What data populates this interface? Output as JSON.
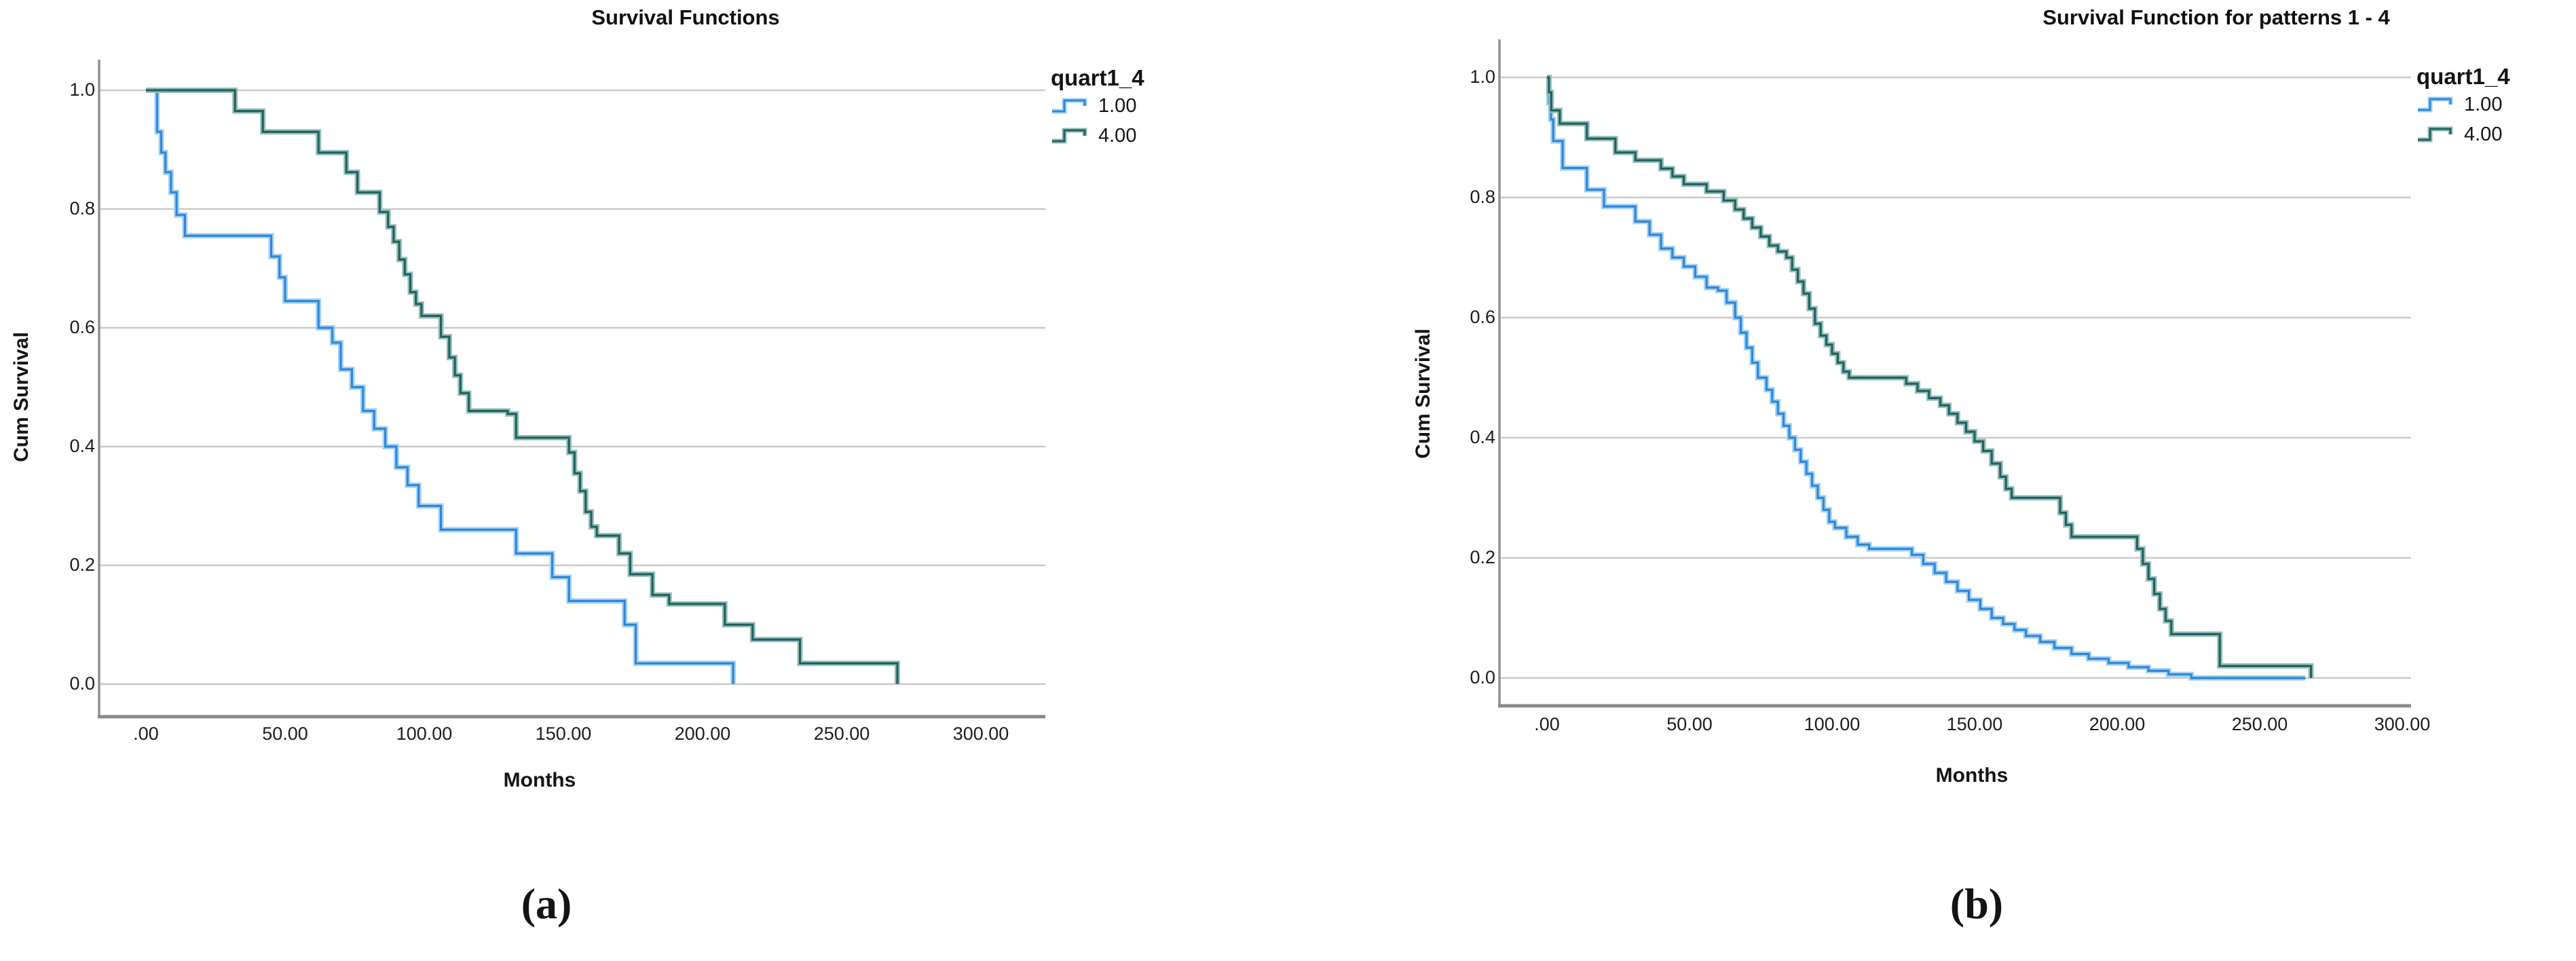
{
  "figure": {
    "caption_a": "(a)",
    "caption_b": "(b)",
    "background": "#ffffff",
    "gridline_color": "#c9c9c9",
    "y_axis_color": "#919191",
    "x_axis_color": "#8a8a8a"
  },
  "chart_data": [
    {
      "id": "a",
      "type": "step",
      "title": "Survival Functions",
      "xlabel": "Months",
      "ylabel": "Cum Survival",
      "caption": "(a)",
      "grid": "horizontal",
      "legend_position": "outside-top-right",
      "xlim": [
        -17,
        323
      ],
      "ylim": [
        0.0,
        1.05
      ],
      "x_tick_values": [
        0,
        50,
        100,
        150,
        200,
        250,
        300
      ],
      "x_tick_labels": [
        ".00",
        "50.00",
        "100.00",
        "150.00",
        "200.00",
        "250.00",
        "300.00"
      ],
      "y_tick_values": [
        0.0,
        0.2,
        0.4,
        0.6,
        0.8,
        1.0
      ],
      "y_tick_labels": [
        "0.0",
        "0.2",
        "0.4",
        "0.6",
        "0.8",
        "1.0"
      ],
      "legend": {
        "title": "quart1_4",
        "items": [
          {
            "label": "1.00",
            "color": "#2e87db",
            "halo": "#a6d2f2"
          },
          {
            "label": "4.00",
            "color": "#1f6360",
            "halo": "#97bebb"
          }
        ]
      },
      "series": [
        {
          "name": "1.00",
          "color": "#2e87db",
          "halo": "#a6d2f2",
          "points": [
            [
              0,
              1.0
            ],
            [
              4,
              0.93
            ],
            [
              5.5,
              0.895
            ],
            [
              7,
              0.862
            ],
            [
              9,
              0.828
            ],
            [
              11,
              0.79
            ],
            [
              14,
              0.755
            ],
            [
              45,
              0.72
            ],
            [
              48,
              0.685
            ],
            [
              50,
              0.645
            ],
            [
              62,
              0.6
            ],
            [
              67,
              0.575
            ],
            [
              70,
              0.53
            ],
            [
              74,
              0.5
            ],
            [
              78,
              0.46
            ],
            [
              82,
              0.43
            ],
            [
              86,
              0.4
            ],
            [
              90,
              0.365
            ],
            [
              94,
              0.335
            ],
            [
              98,
              0.3
            ],
            [
              106,
              0.26
            ],
            [
              133,
              0.22
            ],
            [
              146,
              0.18
            ],
            [
              152,
              0.14
            ],
            [
              172,
              0.1
            ],
            [
              176,
              0.035
            ],
            [
              211,
              0.0
            ]
          ]
        },
        {
          "name": "4.00",
          "color": "#1f6360",
          "halo": "#97bebb",
          "points": [
            [
              0,
              1.0
            ],
            [
              32,
              0.965
            ],
            [
              42,
              0.93
            ],
            [
              62,
              0.895
            ],
            [
              72,
              0.862
            ],
            [
              76,
              0.828
            ],
            [
              84,
              0.795
            ],
            [
              87,
              0.77
            ],
            [
              89,
              0.745
            ],
            [
              91,
              0.715
            ],
            [
              93,
              0.69
            ],
            [
              95,
              0.66
            ],
            [
              97,
              0.64
            ],
            [
              99,
              0.62
            ],
            [
              106,
              0.585
            ],
            [
              109,
              0.55
            ],
            [
              111,
              0.52
            ],
            [
              113,
              0.49
            ],
            [
              116,
              0.46
            ],
            [
              130,
              0.455
            ],
            [
              133,
              0.415
            ],
            [
              152,
              0.39
            ],
            [
              154,
              0.355
            ],
            [
              156,
              0.325
            ],
            [
              158,
              0.29
            ],
            [
              160,
              0.265
            ],
            [
              162,
              0.25
            ],
            [
              170,
              0.22
            ],
            [
              174,
              0.185
            ],
            [
              182,
              0.15
            ],
            [
              188,
              0.135
            ],
            [
              208,
              0.1
            ],
            [
              218,
              0.075
            ],
            [
              235,
              0.035
            ],
            [
              270,
              0.0
            ]
          ]
        }
      ]
    },
    {
      "id": "b",
      "type": "step",
      "title": "Survival Function for patterns 1 - 4",
      "xlabel": "Months",
      "ylabel": "Cum Survival",
      "caption": "(b)",
      "grid": "horizontal",
      "legend_position": "outside-top-right",
      "xlim": [
        -17,
        323
      ],
      "ylim": [
        0.0,
        1.05
      ],
      "x_tick_values": [
        0,
        50,
        100,
        150,
        200,
        250,
        300
      ],
      "x_tick_labels": [
        ".00",
        "50.00",
        "100.00",
        "150.00",
        "200.00",
        "250.00",
        "300.00"
      ],
      "y_tick_values": [
        0.0,
        0.2,
        0.4,
        0.6,
        0.8,
        1.0
      ],
      "y_tick_labels": [
        "0.0",
        "0.2",
        "0.4",
        "0.6",
        "0.8",
        "1.0"
      ],
      "legend": {
        "title": "quart1_4",
        "items": [
          {
            "label": "1.00",
            "color": "#2e87db",
            "halo": "#a6d2f2"
          },
          {
            "label": "4.00",
            "color": "#1f6360",
            "halo": "#97bebb"
          }
        ]
      },
      "series": [
        {
          "name": "1.00",
          "color": "#2e87db",
          "halo": "#a6d2f2",
          "points": [
            [
              0,
              1.0
            ],
            [
              0.7,
              0.957
            ],
            [
              1.4,
              0.93
            ],
            [
              2.2,
              0.894
            ],
            [
              5.5,
              0.849
            ],
            [
              14,
              0.813
            ],
            [
              20,
              0.785
            ],
            [
              31,
              0.76
            ],
            [
              36,
              0.738
            ],
            [
              40,
              0.715
            ],
            [
              44,
              0.7
            ],
            [
              48,
              0.685
            ],
            [
              52,
              0.668
            ],
            [
              56,
              0.65
            ],
            [
              60,
              0.645
            ],
            [
              63,
              0.625
            ],
            [
              66,
              0.6
            ],
            [
              68,
              0.575
            ],
            [
              70,
              0.55
            ],
            [
              72,
              0.525
            ],
            [
              74,
              0.5
            ],
            [
              77,
              0.48
            ],
            [
              79,
              0.46
            ],
            [
              81,
              0.44
            ],
            [
              83,
              0.42
            ],
            [
              85,
              0.4
            ],
            [
              87,
              0.38
            ],
            [
              89,
              0.36
            ],
            [
              91,
              0.34
            ],
            [
              93,
              0.32
            ],
            [
              95,
              0.3
            ],
            [
              97,
              0.28
            ],
            [
              99,
              0.26
            ],
            [
              101,
              0.25
            ],
            [
              105,
              0.235
            ],
            [
              109,
              0.222
            ],
            [
              113,
              0.215
            ],
            [
              128,
              0.205
            ],
            [
              132,
              0.19
            ],
            [
              136,
              0.175
            ],
            [
              140,
              0.16
            ],
            [
              144,
              0.145
            ],
            [
              148,
              0.13
            ],
            [
              152,
              0.115
            ],
            [
              156,
              0.1
            ],
            [
              160,
              0.09
            ],
            [
              164,
              0.08
            ],
            [
              168,
              0.07
            ],
            [
              173,
              0.06
            ],
            [
              178,
              0.05
            ],
            [
              184,
              0.04
            ],
            [
              190,
              0.032
            ],
            [
              197,
              0.025
            ],
            [
              204,
              0.018
            ],
            [
              211,
              0.012
            ],
            [
              218,
              0.006
            ],
            [
              226,
              0.0
            ],
            [
              266,
              0.0
            ]
          ]
        },
        {
          "name": "4.00",
          "color": "#1f6360",
          "halo": "#97bebb",
          "points": [
            [
              0,
              1.0
            ],
            [
              0.7,
              0.975
            ],
            [
              1.5,
              0.945
            ],
            [
              4.5,
              0.923
            ],
            [
              14,
              0.898
            ],
            [
              24,
              0.875
            ],
            [
              31,
              0.862
            ],
            [
              40,
              0.848
            ],
            [
              44,
              0.835
            ],
            [
              48,
              0.822
            ],
            [
              56,
              0.81
            ],
            [
              62,
              0.795
            ],
            [
              66,
              0.78
            ],
            [
              69,
              0.765
            ],
            [
              72,
              0.75
            ],
            [
              75,
              0.735
            ],
            [
              78,
              0.72
            ],
            [
              81,
              0.71
            ],
            [
              84,
              0.7
            ],
            [
              86,
              0.68
            ],
            [
              88,
              0.66
            ],
            [
              90,
              0.64
            ],
            [
              92,
              0.615
            ],
            [
              94,
              0.59
            ],
            [
              96,
              0.57
            ],
            [
              98,
              0.555
            ],
            [
              100,
              0.54
            ],
            [
              102,
              0.525
            ],
            [
              104,
              0.51
            ],
            [
              106,
              0.5
            ],
            [
              126,
              0.49
            ],
            [
              130,
              0.478
            ],
            [
              134,
              0.466
            ],
            [
              138,
              0.454
            ],
            [
              141,
              0.44
            ],
            [
              144,
              0.425
            ],
            [
              147,
              0.41
            ],
            [
              150,
              0.394
            ],
            [
              153,
              0.378
            ],
            [
              156,
              0.357
            ],
            [
              159,
              0.335
            ],
            [
              161,
              0.315
            ],
            [
              163,
              0.3
            ],
            [
              180,
              0.275
            ],
            [
              182,
              0.255
            ],
            [
              184,
              0.235
            ],
            [
              207,
              0.215
            ],
            [
              209,
              0.19
            ],
            [
              211,
              0.165
            ],
            [
              213,
              0.14
            ],
            [
              215,
              0.115
            ],
            [
              217,
              0.095
            ],
            [
              219,
              0.073
            ],
            [
              236,
              0.02
            ],
            [
              268,
              0.0
            ]
          ]
        }
      ]
    }
  ]
}
